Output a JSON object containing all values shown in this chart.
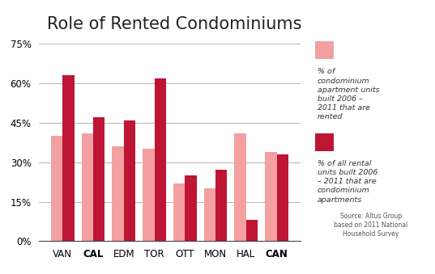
{
  "title": "Role of Rented Condominiums",
  "categories": [
    "VAN",
    "CAL",
    "EDM",
    "TOR",
    "OTT",
    "MON",
    "HAL",
    "CAN"
  ],
  "bold_categories": [
    1,
    7
  ],
  "series1_values": [
    40,
    41,
    36,
    35,
    22,
    20,
    41,
    34
  ],
  "series2_values": [
    63,
    47,
    46,
    62,
    25,
    27,
    8,
    33
  ],
  "series1_color": "#F4A0A0",
  "series2_color": "#BE1535",
  "ylim": [
    0,
    75
  ],
  "yticks": [
    0,
    15,
    30,
    45,
    60,
    75
  ],
  "ytick_labels": [
    "0%",
    "15%",
    "30%",
    "45%",
    "60%",
    "75%"
  ],
  "legend_label1": "% of\ncondominium\napartment units\nbuilt 2006 –\n2011 that are\nrented",
  "legend_label2": "% of all rental\nunits built 2006\n– 2011 that are\ncondominium\napartments",
  "source_text": "Source: Altus Group\nbased on 2011 National\nHousehold Survey",
  "legend_bg_color": "#E0E0E0",
  "background_color": "#FFFFFF",
  "title_fontsize": 15,
  "bar_width": 0.38,
  "gridcolor": "#AAAAAA"
}
